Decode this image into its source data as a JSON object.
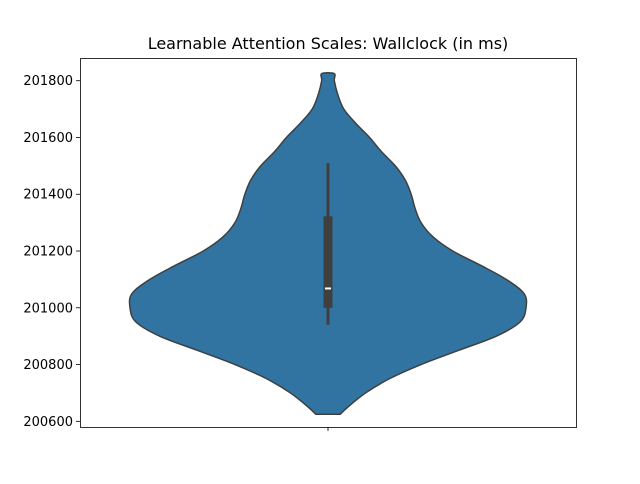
{
  "chart_data": {
    "type": "violin",
    "title": "Learnable Attention Scales: Wallclock (in ms)",
    "xlabel": "",
    "ylabel": "",
    "categories": [
      ""
    ],
    "ylim": [
      200580,
      201880
    ],
    "yticks": [
      200600,
      200800,
      201000,
      201200,
      201400,
      201600,
      201800
    ],
    "grid": false,
    "color": "#3274a1",
    "edge_color": "#3f3f3f",
    "density_profile": [
      {
        "y": 200625,
        "w": 0.062
      },
      {
        "y": 200650,
        "w": 0.1
      },
      {
        "y": 200700,
        "w": 0.19
      },
      {
        "y": 200750,
        "w": 0.31
      },
      {
        "y": 200800,
        "w": 0.47
      },
      {
        "y": 200850,
        "w": 0.66
      },
      {
        "y": 200900,
        "w": 0.85
      },
      {
        "y": 200950,
        "w": 0.97
      },
      {
        "y": 201000,
        "w": 1.0
      },
      {
        "y": 201050,
        "w": 0.99
      },
      {
        "y": 201100,
        "w": 0.9
      },
      {
        "y": 201150,
        "w": 0.77
      },
      {
        "y": 201200,
        "w": 0.63
      },
      {
        "y": 201250,
        "w": 0.53
      },
      {
        "y": 201300,
        "w": 0.47
      },
      {
        "y": 201350,
        "w": 0.44
      },
      {
        "y": 201400,
        "w": 0.42
      },
      {
        "y": 201450,
        "w": 0.39
      },
      {
        "y": 201500,
        "w": 0.34
      },
      {
        "y": 201550,
        "w": 0.27
      },
      {
        "y": 201600,
        "w": 0.21
      },
      {
        "y": 201650,
        "w": 0.14
      },
      {
        "y": 201700,
        "w": 0.08
      },
      {
        "y": 201750,
        "w": 0.05
      },
      {
        "y": 201800,
        "w": 0.032
      },
      {
        "y": 201825,
        "w": 0.032
      }
    ],
    "box": {
      "whisker_low": 200940,
      "q1": 201000,
      "median": 201068,
      "q3": 201322,
      "whisker_high": 201510
    }
  }
}
